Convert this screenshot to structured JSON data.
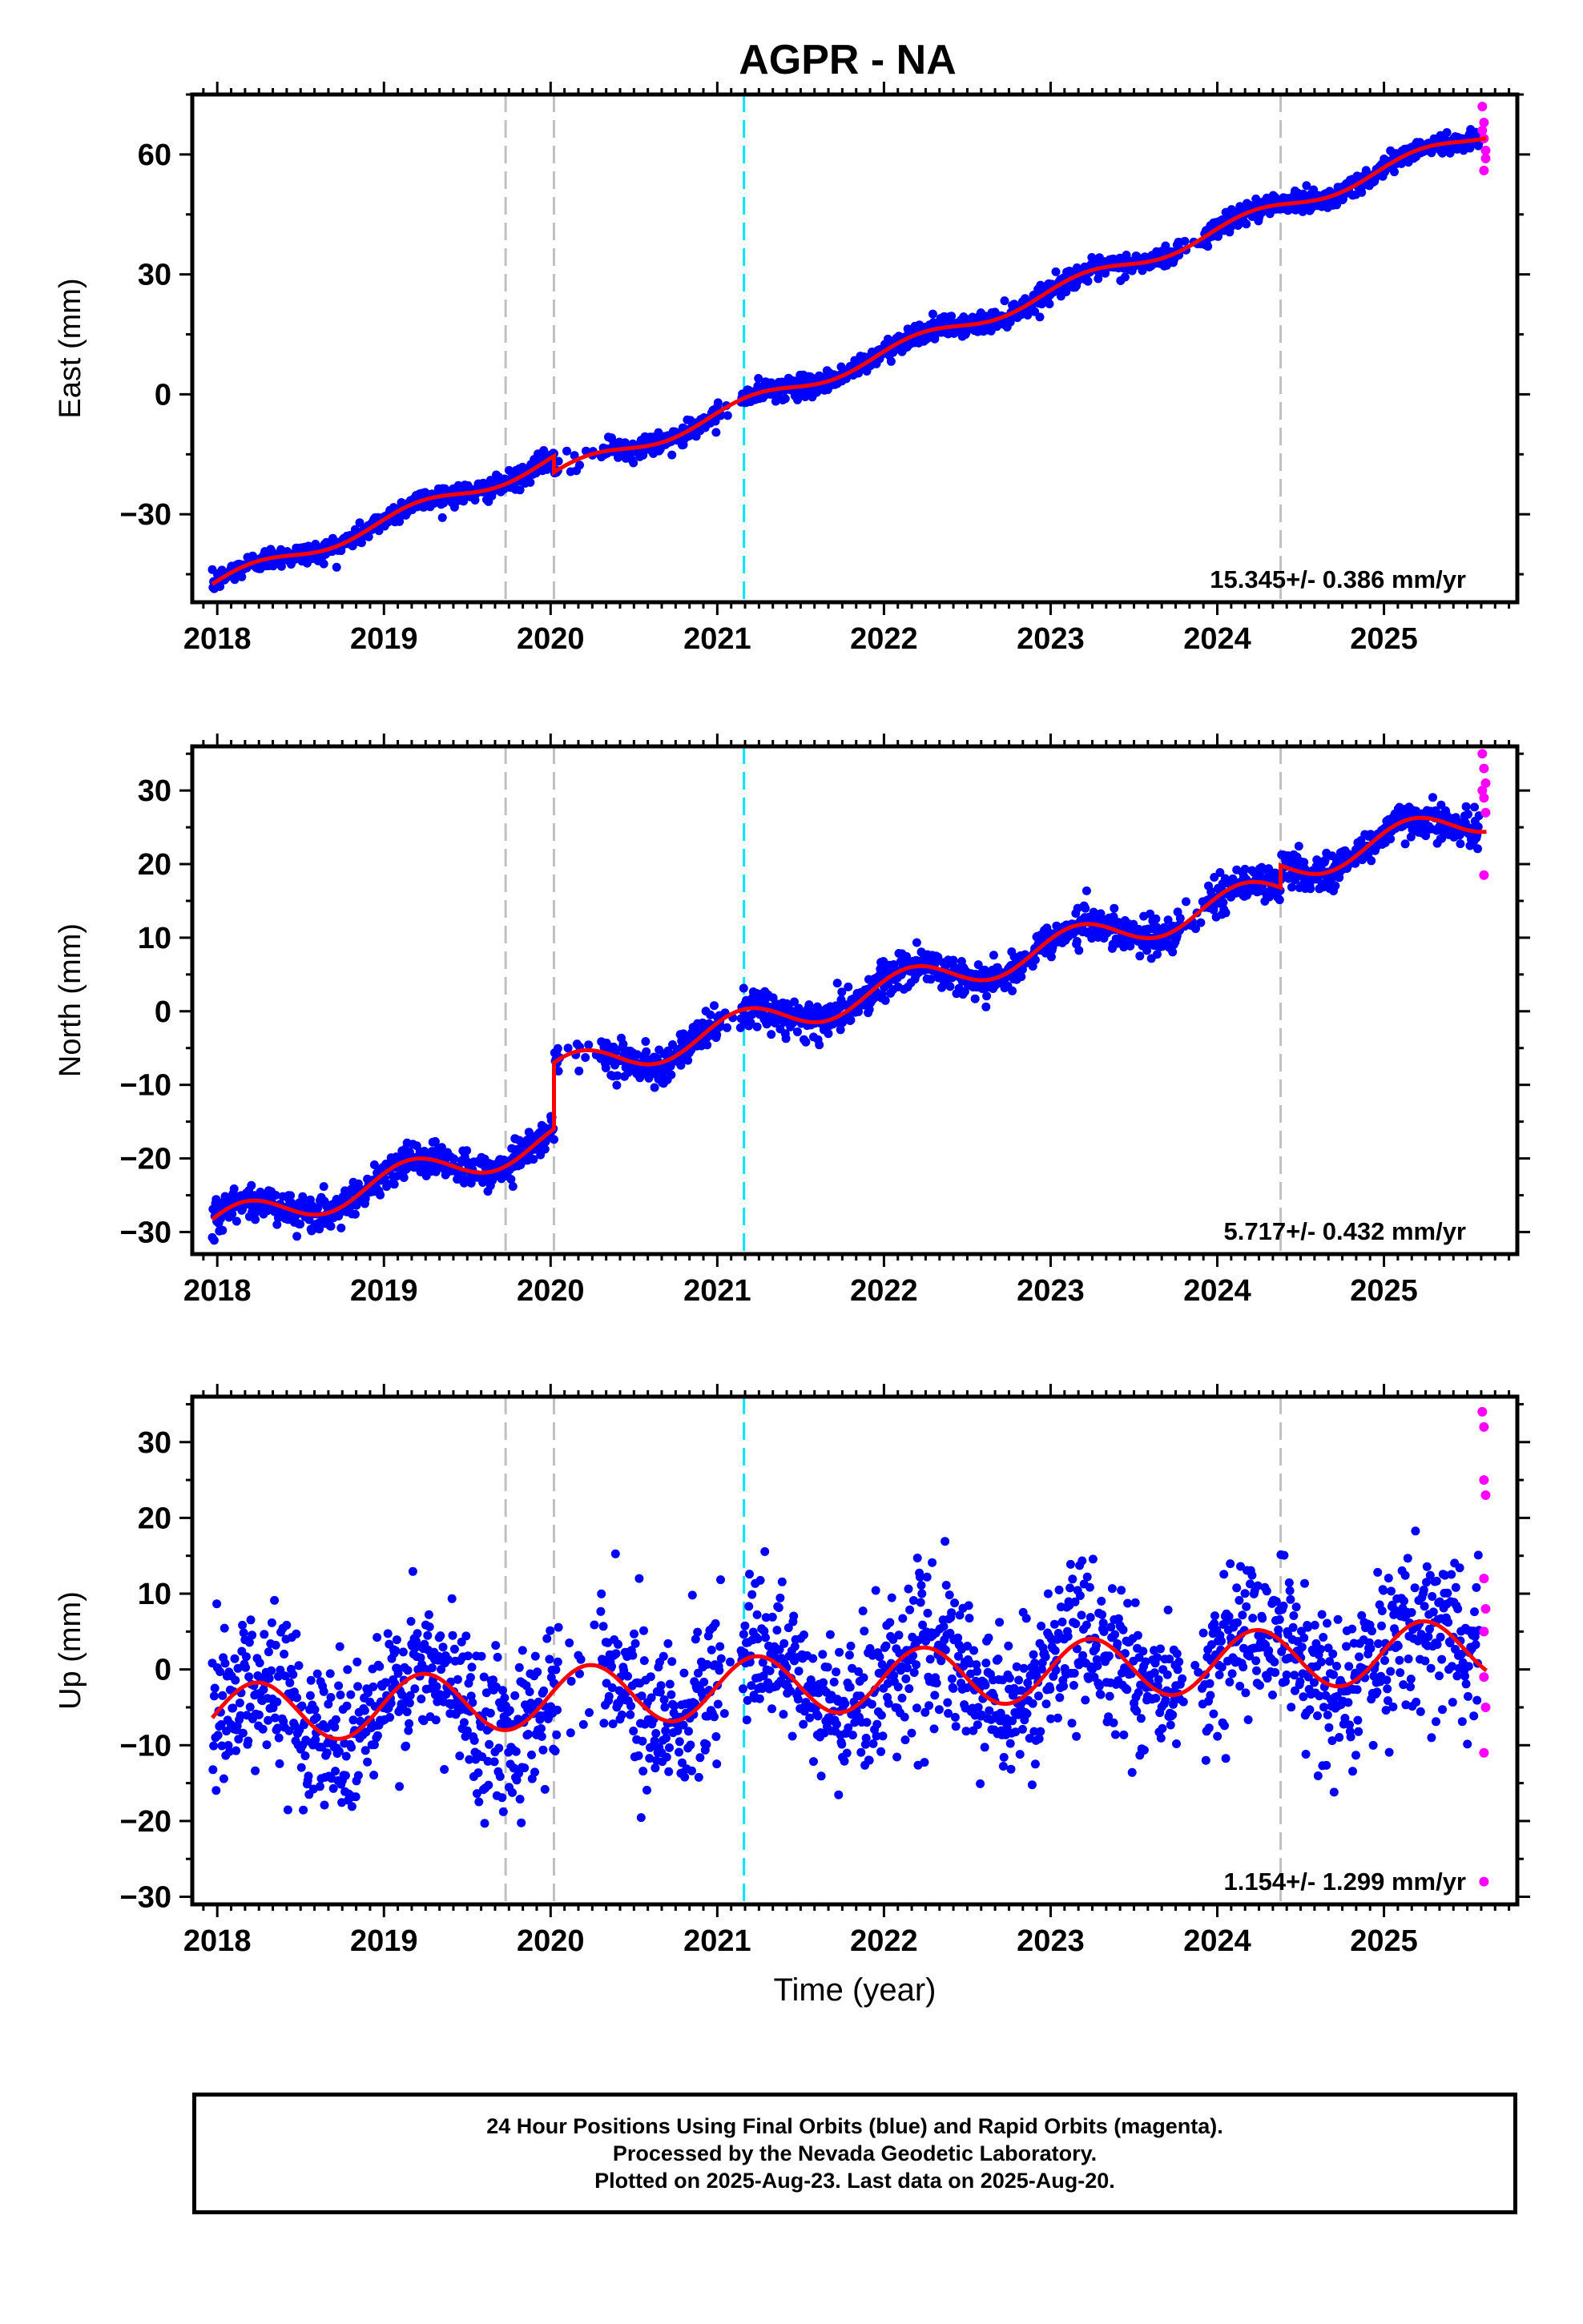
{
  "figure": {
    "title": "AGPR - NA",
    "footer": [
      "24 Hour Positions Using Final Orbits (blue) and Rapid Orbits (magenta).",
      "Processed by the Nevada Geodetic Laboratory.",
      "Plotted on 2025-Aug-23. Last data on 2025-Aug-20."
    ],
    "colors": {
      "final_orbits": "#0000ff",
      "rapid_orbits": "#ff00ff",
      "model_fit": "#ff0000",
      "equipment_change": "#c0c0c0",
      "earthquake": "#00e5ff"
    }
  },
  "chart_data": [
    {
      "type": "scatter",
      "component": "East",
      "ylabel": "East (mm)",
      "xlabel": "",
      "xlim": [
        2017.85,
        2025.8
      ],
      "ylim": [
        -52,
        75
      ],
      "xticks": [
        2018,
        2019,
        2020,
        2021,
        2022,
        2023,
        2024,
        2025
      ],
      "yticks": [
        -30,
        0,
        30,
        60
      ],
      "rate_label": "15.345+/- 0.386 mm/yr",
      "rate": 15.345,
      "offset_2018": -47.2,
      "steps": [
        {
          "t": 2020.02,
          "d": -4.0
        }
      ],
      "seasonal": {
        "amp": 1.8,
        "phase": 0.3
      },
      "scatter_sd": 1.3,
      "vlines_gray": [
        2019.73,
        2020.02,
        2024.38
      ],
      "vlines_cyan": [
        2021.16
      ],
      "rapid_points": [
        [
          2025.59,
          72
        ],
        [
          2025.6,
          68
        ],
        [
          2025.61,
          61
        ],
        [
          2025.6,
          64
        ],
        [
          2025.61,
          59
        ],
        [
          2025.6,
          56
        ],
        [
          2025.59,
          66
        ]
      ]
    },
    {
      "type": "scatter",
      "component": "North",
      "ylabel": "North (mm)",
      "xlabel": "",
      "xlim": [
        2017.85,
        2025.8
      ],
      "ylim": [
        -33,
        36
      ],
      "xticks": [
        2018,
        2019,
        2020,
        2021,
        2022,
        2023,
        2024,
        2025
      ],
      "yticks": [
        -30,
        -20,
        -10,
        0,
        10,
        20,
        30
      ],
      "rate_label": "5.717+/- 0.432 mm/yr",
      "rate": 5.717,
      "offset_2018": -29.0,
      "steps": [
        {
          "t": 2020.02,
          "d": 9.0
        },
        {
          "t": 2024.38,
          "d": 3.0
        }
      ],
      "seasonal": {
        "amp": 2.2,
        "phase": 0.6
      },
      "scatter_sd": 1.2,
      "vlines_gray": [
        2019.73,
        2020.02,
        2024.38
      ],
      "vlines_cyan": [
        2021.16
      ],
      "rapid_points": [
        [
          2025.59,
          35
        ],
        [
          2025.6,
          33
        ],
        [
          2025.61,
          31
        ],
        [
          2025.6,
          29
        ],
        [
          2025.61,
          27
        ],
        [
          2025.6,
          18.5
        ],
        [
          2025.59,
          30
        ]
      ]
    },
    {
      "type": "scatter",
      "component": "Up",
      "ylabel": "Up (mm)",
      "xlabel": "Time (year)",
      "xlim": [
        2017.85,
        2025.8
      ],
      "ylim": [
        -31,
        36
      ],
      "xticks": [
        2018,
        2019,
        2020,
        2021,
        2022,
        2023,
        2024,
        2025
      ],
      "yticks": [
        -30,
        -20,
        -10,
        0,
        10,
        20,
        30
      ],
      "rate_label": "1.154+/- 1.299 mm/yr",
      "rate": 1.154,
      "offset_2018": -6.0,
      "steps": [],
      "seasonal": {
        "amp": 4.0,
        "phase": 0.1
      },
      "scatter_sd": 5.0,
      "vlines_gray": [
        2019.73,
        2020.02,
        2024.38
      ],
      "vlines_cyan": [
        2021.16
      ],
      "rapid_points": [
        [
          2025.59,
          34
        ],
        [
          2025.6,
          32
        ],
        [
          2025.6,
          25
        ],
        [
          2025.61,
          23
        ],
        [
          2025.6,
          12
        ],
        [
          2025.61,
          8
        ],
        [
          2025.6,
          5
        ],
        [
          2025.6,
          -1
        ],
        [
          2025.61,
          -5
        ],
        [
          2025.6,
          -11
        ],
        [
          2025.6,
          -28
        ]
      ]
    }
  ]
}
